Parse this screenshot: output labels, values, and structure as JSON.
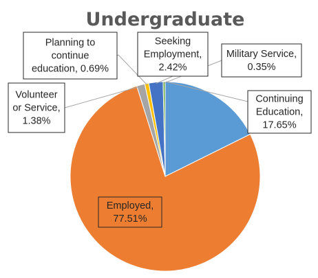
{
  "chart_data": {
    "type": "pie",
    "title": "Undergraduate",
    "slices": [
      {
        "name": "Continuing Education",
        "value": 17.65,
        "label": [
          "Continuing",
          "Education,",
          "17.65%"
        ],
        "color": "#5b9bd5"
      },
      {
        "name": "Employed",
        "value": 77.51,
        "label": [
          "Employed,",
          "77.51%"
        ],
        "color": "#ed7d31"
      },
      {
        "name": "Volunteer or Service",
        "value": 1.38,
        "label": [
          "Volunteer",
          "or Service,",
          "1.38%"
        ],
        "color": "#a5a5a5"
      },
      {
        "name": "Planning to continue education",
        "value": 0.69,
        "label": [
          "Planning to",
          "continue",
          "education, 0.69%"
        ],
        "color": "#ffc000"
      },
      {
        "name": "Seeking Employment",
        "value": 2.42,
        "label": [
          "Seeking",
          "Employment,",
          "2.42%"
        ],
        "color": "#4472c4"
      },
      {
        "name": "Military Service",
        "value": 0.35,
        "label": [
          "Military Service,",
          "0.35%"
        ],
        "color": "#70ad47"
      }
    ],
    "legend": "none",
    "labels": "callouts"
  }
}
